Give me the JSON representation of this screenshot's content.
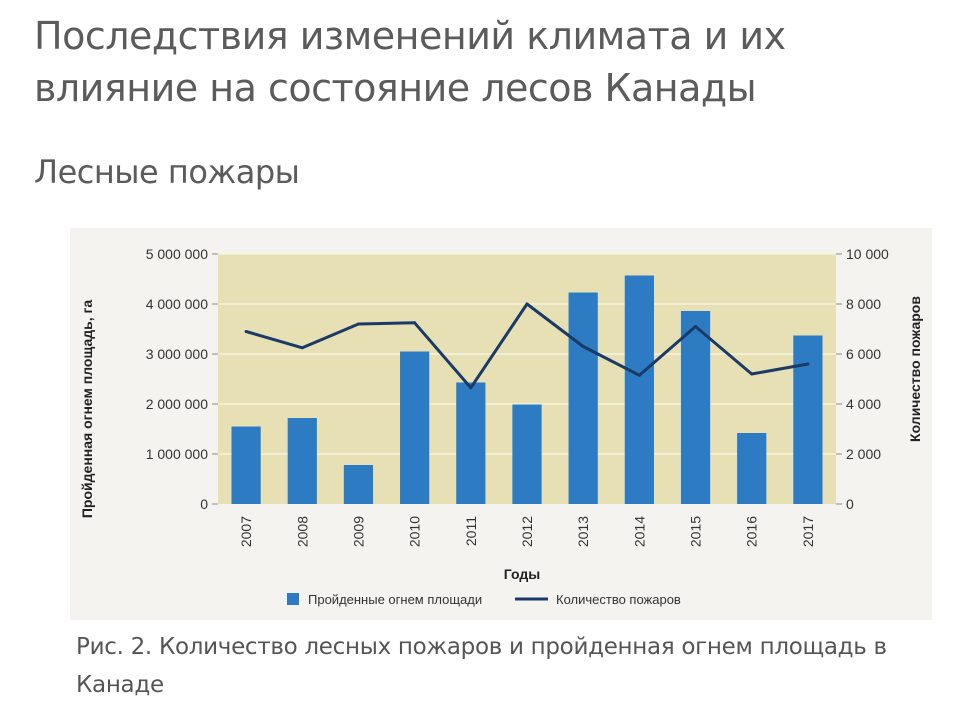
{
  "slide": {
    "title": "Последствия изменений климата и их влияние на состояние лесов Канады",
    "subtitle": "Лесные пожары",
    "caption": "Рис. 2. Количество лесных пожаров и пройденная огнем площадь в Канаде"
  },
  "colors": {
    "bar": "#2c7bc3",
    "line": "#1b3a66",
    "plot_background": "#e6e0b4",
    "gridline": "#f6f3dc",
    "axis_text": "#333333"
  },
  "chart_data": {
    "type": "bar",
    "title": "",
    "categories": [
      "2007",
      "2008",
      "2009",
      "2010",
      "2011",
      "2012",
      "2013",
      "2014",
      "2015",
      "2016",
      "2017"
    ],
    "xlabel": "Годы",
    "ylabel": "Пройденная огнем площадь, га",
    "y2label": "Количество пожаров",
    "ylim": [
      0,
      5000000
    ],
    "y2lim": [
      0,
      10000
    ],
    "y_ticks": [
      "0",
      "1 000 000",
      "2 000 000",
      "3 000 000",
      "4 000 000",
      "5 000 000"
    ],
    "y2_ticks": [
      "0",
      "2 000",
      "4 000",
      "6 000",
      "8 000",
      "10 000"
    ],
    "grid": true,
    "legend_position": "bottom",
    "series": [
      {
        "name": "Пройденные огнем площади",
        "type": "bar",
        "axis": "left",
        "values": [
          1550000,
          1720000,
          780000,
          3050000,
          2430000,
          1990000,
          4230000,
          4570000,
          3860000,
          1420000,
          3370000
        ]
      },
      {
        "name": "Количество пожаров",
        "type": "line",
        "axis": "right",
        "values": [
          6900,
          6250,
          7200,
          7250,
          4650,
          8000,
          6300,
          5150,
          7100,
          5200,
          5600
        ]
      }
    ]
  }
}
